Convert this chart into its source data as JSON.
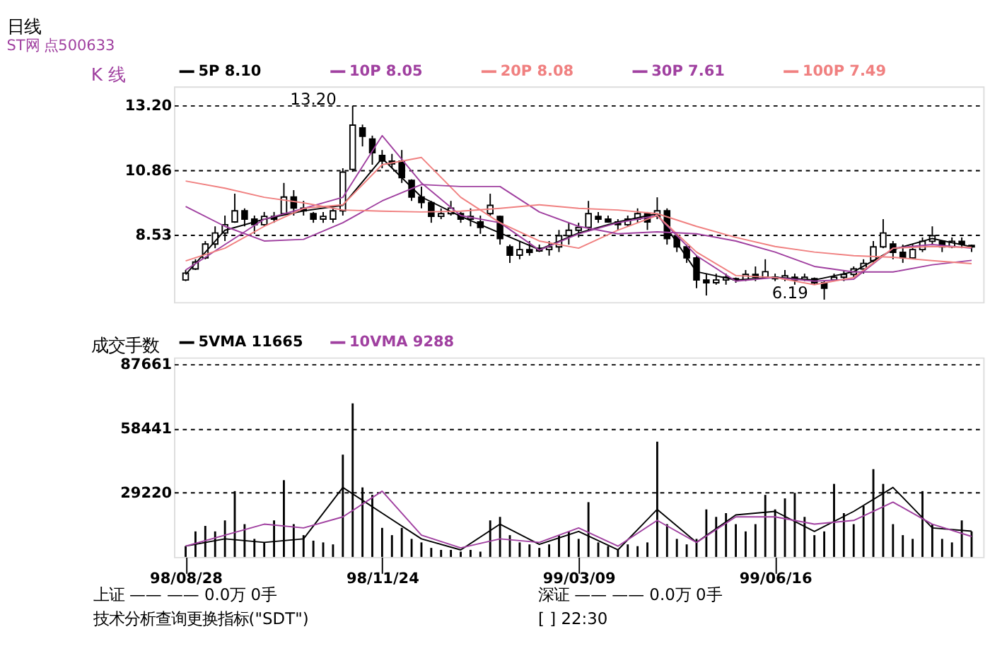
{
  "chart_data": [
    {
      "type": "candlestick",
      "title": "日线",
      "subtitle": "ST网    点500633",
      "ylabel": "K 线",
      "legend": "top",
      "grid": "y",
      "tick_labels": "y",
      "categories": [
        null,
        null,
        null,
        null,
        null,
        null,
        null,
        null,
        null,
        null,
        null,
        null,
        null,
        null,
        null,
        null,
        null,
        null,
        null,
        null,
        null,
        null,
        null,
        null,
        null,
        null,
        null,
        null,
        null,
        null,
        null,
        null,
        null,
        null,
        null,
        null,
        null,
        null,
        null,
        null,
        null,
        null,
        null,
        null,
        null,
        null,
        null,
        null,
        null,
        null,
        null,
        null,
        null,
        null,
        null,
        null,
        null,
        null,
        null,
        null,
        null,
        null,
        null,
        null,
        null,
        null,
        null,
        null,
        null,
        null,
        null,
        null,
        null,
        null,
        null,
        null,
        null,
        null,
        null,
        null,
        null
      ],
      "ohlc": [
        [
          6.9,
          7.26,
          6.86,
          7.15
        ],
        [
          7.3,
          7.65,
          7.26,
          7.55
        ],
        [
          7.7,
          8.31,
          7.65,
          8.2
        ],
        [
          8.2,
          8.84,
          8.05,
          8.6
        ],
        [
          8.6,
          9.23,
          8.31,
          8.9
        ],
        [
          9.0,
          10.02,
          8.97,
          9.4
        ],
        [
          9.4,
          9.49,
          8.84,
          9.1
        ],
        [
          9.1,
          9.23,
          8.57,
          8.9
        ],
        [
          8.9,
          9.36,
          8.84,
          9.2
        ],
        [
          9.2,
          9.36,
          8.97,
          9.1
        ],
        [
          9.3,
          10.41,
          9.23,
          9.9
        ],
        [
          9.9,
          10.15,
          9.23,
          9.5
        ],
        [
          9.5,
          9.76,
          9.23,
          9.4
        ],
        [
          9.3,
          9.36,
          8.97,
          9.1
        ],
        [
          9.1,
          9.36,
          8.97,
          9.2
        ],
        [
          9.1,
          9.49,
          8.97,
          9.4
        ],
        [
          9.4,
          10.94,
          9.23,
          10.8
        ],
        [
          10.9,
          13.2,
          10.81,
          12.5
        ],
        [
          12.4,
          12.52,
          11.73,
          12.1
        ],
        [
          12.0,
          12.12,
          11.07,
          11.5
        ],
        [
          11.4,
          11.6,
          10.94,
          11.2
        ],
        [
          11.2,
          11.46,
          10.94,
          11.1
        ],
        [
          11.2,
          11.6,
          10.41,
          10.6
        ],
        [
          10.5,
          10.54,
          9.76,
          9.9
        ],
        [
          9.9,
          10.28,
          9.49,
          9.7
        ],
        [
          9.7,
          9.76,
          8.97,
          9.2
        ],
        [
          9.2,
          9.49,
          9.1,
          9.3
        ],
        [
          9.3,
          9.76,
          9.23,
          9.5
        ],
        [
          9.3,
          9.36,
          8.97,
          9.1
        ],
        [
          9.1,
          9.49,
          8.84,
          9.2
        ],
        [
          9.0,
          9.23,
          8.57,
          8.8
        ],
        [
          9.3,
          10.02,
          9.23,
          9.6
        ],
        [
          9.2,
          9.23,
          8.18,
          8.4
        ],
        [
          8.1,
          8.18,
          7.52,
          7.8
        ],
        [
          7.8,
          8.31,
          7.65,
          8.0
        ],
        [
          8.0,
          8.31,
          7.78,
          7.9
        ],
        [
          7.95,
          8.18,
          7.91,
          8.05
        ],
        [
          8.0,
          8.31,
          7.78,
          8.1
        ],
        [
          8.1,
          8.71,
          7.91,
          8.5
        ],
        [
          8.5,
          8.97,
          8.18,
          8.7
        ],
        [
          8.7,
          8.97,
          8.44,
          8.8
        ],
        [
          8.8,
          9.76,
          8.71,
          9.3
        ],
        [
          9.2,
          9.36,
          8.97,
          9.1
        ],
        [
          9.1,
          9.23,
          8.97,
          9.0
        ],
        [
          9.0,
          9.1,
          8.71,
          8.9
        ],
        [
          8.9,
          9.23,
          8.84,
          9.1
        ],
        [
          9.1,
          9.49,
          8.97,
          9.3
        ],
        [
          9.3,
          9.36,
          8.71,
          9.0
        ],
        [
          9.2,
          9.89,
          9.1,
          9.4
        ],
        [
          9.4,
          9.49,
          8.18,
          8.4
        ],
        [
          8.5,
          8.57,
          7.91,
          8.1
        ],
        [
          8.1,
          8.18,
          7.52,
          7.7
        ],
        [
          7.7,
          7.78,
          6.6,
          6.9
        ],
        [
          6.9,
          7.13,
          6.34,
          6.8
        ],
        [
          6.8,
          7.13,
          6.73,
          6.9
        ],
        [
          6.9,
          7.13,
          6.73,
          7.0
        ],
        [
          6.95,
          6.99,
          6.8,
          6.9
        ],
        [
          6.9,
          7.26,
          6.86,
          7.1
        ],
        [
          7.1,
          7.39,
          6.86,
          7.0
        ],
        [
          7.0,
          7.65,
          6.99,
          7.2
        ],
        [
          7.0,
          7.13,
          6.86,
          6.95
        ],
        [
          6.95,
          7.26,
          6.86,
          7.05
        ],
        [
          7.0,
          7.13,
          6.73,
          6.9
        ],
        [
          6.9,
          7.13,
          6.86,
          7.0
        ],
        [
          6.95,
          6.99,
          6.73,
          6.8
        ],
        [
          6.8,
          6.86,
          6.19,
          6.6
        ],
        [
          6.9,
          7.13,
          6.86,
          7.0
        ],
        [
          7.0,
          7.26,
          6.86,
          7.1
        ],
        [
          7.1,
          7.39,
          6.99,
          7.3
        ],
        [
          7.3,
          7.65,
          7.13,
          7.5
        ],
        [
          7.6,
          8.31,
          7.52,
          8.1
        ],
        [
          8.1,
          9.1,
          8.05,
          8.6
        ],
        [
          8.2,
          8.31,
          7.65,
          7.9
        ],
        [
          7.9,
          8.18,
          7.52,
          7.7
        ],
        [
          7.7,
          8.18,
          7.65,
          8.0
        ],
        [
          8.0,
          8.44,
          7.91,
          8.3
        ],
        [
          8.3,
          8.84,
          8.18,
          8.5
        ],
        [
          8.3,
          8.31,
          7.91,
          8.1
        ],
        [
          8.1,
          8.44,
          8.05,
          8.3
        ],
        [
          8.3,
          8.44,
          8.05,
          8.2
        ],
        [
          8.15,
          8.18,
          7.91,
          8.1
        ]
      ],
      "series": [
        {
          "type": "line",
          "name": "5P 8.10",
          "color": "#000000",
          "values": [
            7.1,
            null,
            null,
            null,
            8.7,
            null,
            null,
            null,
            9.1,
            null,
            null,
            null,
            9.4,
            null,
            null,
            null,
            9.6,
            null,
            null,
            null,
            11.3,
            null,
            null,
            null,
            9.9,
            null,
            null,
            null,
            9.2,
            null,
            null,
            null,
            8.6,
            null,
            null,
            null,
            8.0,
            null,
            null,
            null,
            8.6,
            null,
            null,
            null,
            9.0,
            null,
            null,
            null,
            9.3,
            null,
            null,
            null,
            7.2,
            null,
            null,
            null,
            6.9,
            null,
            null,
            null,
            7.0,
            null,
            null,
            null,
            6.9,
            null,
            null,
            null,
            7.2,
            null,
            null,
            null,
            8.0,
            null,
            null,
            null,
            8.4,
            null,
            null,
            null,
            8.1
          ]
        },
        {
          "type": "line",
          "name": "10P 8.05",
          "color": "#a040a0",
          "values": [
            7.26,
            null,
            null,
            null,
            8.18,
            null,
            null,
            null,
            9.1,
            null,
            null,
            null,
            9.49,
            null,
            null,
            null,
            9.89,
            null,
            null,
            null,
            12.12,
            null,
            null,
            null,
            10.41,
            null,
            null,
            null,
            9.23,
            null,
            null,
            null,
            8.97,
            null,
            null,
            null,
            7.98,
            null,
            null,
            null,
            8.57,
            null,
            null,
            null,
            8.97,
            null,
            null,
            null,
            9.23,
            null,
            null,
            null,
            7.78,
            null,
            null,
            null,
            6.86,
            null,
            null,
            null,
            6.99,
            null,
            null,
            null,
            6.86,
            null,
            null,
            null,
            6.93,
            null,
            null,
            null,
            8.05,
            null,
            null,
            null,
            8.18,
            null,
            null,
            null,
            8.05
          ]
        },
        {
          "type": "line",
          "name": "20P 8.08",
          "color": "#f08080",
          "values": [
            7.59,
            null,
            null,
            null,
            8.05,
            null,
            null,
            null,
            8.84,
            null,
            null,
            null,
            9.49,
            null,
            null,
            null,
            9.62,
            null,
            null,
            null,
            11.07,
            null,
            null,
            null,
            11.33,
            null,
            null,
            null,
            9.89,
            null,
            null,
            null,
            8.97,
            null,
            null,
            null,
            8.31,
            null,
            null,
            null,
            8.05,
            null,
            null,
            null,
            8.7,
            null,
            null,
            null,
            9.23,
            null,
            null,
            null,
            7.91,
            null,
            null,
            null,
            7.06,
            null,
            null,
            null,
            6.99,
            null,
            null,
            null,
            6.73,
            null,
            null,
            null,
            6.99,
            null,
            null,
            null,
            8.05,
            null,
            null,
            null,
            8.11,
            null,
            null,
            null,
            8.08
          ]
        },
        {
          "type": "line",
          "name": "30P 7.61",
          "color": "#a040a0",
          "values": [
            9.56,
            null,
            null,
            null,
            8.84,
            null,
            null,
            null,
            8.31,
            null,
            null,
            null,
            8.37,
            null,
            null,
            null,
            8.97,
            null,
            null,
            null,
            9.76,
            null,
            null,
            null,
            10.35,
            null,
            null,
            null,
            10.28,
            null,
            null,
            null,
            10.28,
            null,
            null,
            null,
            9.36,
            null,
            null,
            null,
            8.84,
            null,
            null,
            null,
            8.57,
            null,
            null,
            null,
            8.64,
            null,
            null,
            null,
            8.57,
            null,
            null,
            null,
            8.31,
            null,
            null,
            null,
            7.91,
            null,
            null,
            null,
            7.39,
            null,
            null,
            null,
            7.19,
            null,
            null,
            null,
            7.19,
            null,
            null,
            null,
            7.45,
            null,
            null,
            null,
            7.61
          ]
        },
        {
          "type": "line",
          "name": "100P 7.49",
          "color": "#f08080",
          "values": [
            10.48,
            null,
            null,
            null,
            10.22,
            null,
            null,
            null,
            9.89,
            null,
            null,
            null,
            9.69,
            null,
            null,
            null,
            9.43,
            null,
            null,
            null,
            9.39,
            null,
            null,
            null,
            9.36,
            null,
            null,
            null,
            9.39,
            null,
            null,
            null,
            9.49,
            null,
            null,
            null,
            9.62,
            null,
            null,
            null,
            9.49,
            null,
            null,
            null,
            9.43,
            null,
            null,
            null,
            9.3,
            null,
            null,
            null,
            8.84,
            null,
            null,
            null,
            8.44,
            null,
            null,
            null,
            8.11,
            null,
            null,
            null,
            7.91,
            null,
            null,
            null,
            7.78,
            null,
            null,
            null,
            7.72,
            null,
            null,
            null,
            7.6,
            null,
            null,
            null,
            7.49
          ]
        }
      ],
      "ylim": [
        6.1,
        13.9
      ],
      "yticks": [
        {
          "value": 13.2,
          "label": "13.20"
        },
        {
          "value": 10.86,
          "label": "10.86"
        },
        {
          "value": 8.53,
          "label": "8.53"
        }
      ],
      "annotations": [
        "13.20",
        "6.19"
      ]
    },
    {
      "type": "bar",
      "ylabel": "成交手数",
      "legend": "top",
      "grid": "y",
      "categories": [
        "98/08/28",
        null,
        null,
        null,
        null,
        null,
        null,
        null,
        null,
        null,
        null,
        null,
        null,
        null,
        null,
        null,
        null,
        null,
        null,
        null,
        "98/11/24",
        null,
        null,
        null,
        null,
        null,
        null,
        null,
        null,
        null,
        null,
        null,
        null,
        null,
        null,
        null,
        null,
        null,
        null,
        null,
        "99/03/09",
        null,
        null,
        null,
        null,
        null,
        null,
        null,
        null,
        null,
        null,
        null,
        null,
        null,
        null,
        null,
        null,
        null,
        null,
        null,
        "99/06/16",
        null,
        null,
        null,
        null,
        null,
        null,
        null,
        null,
        null,
        null,
        null,
        null,
        null,
        null,
        null,
        null,
        null,
        null,
        null,
        null
      ],
      "series": [
        {
          "type": "bar",
          "color": "#000000",
          "values": [
            4900,
            11600,
            14100,
            11600,
            16600,
            29900,
            14900,
            8200,
            6600,
            16600,
            34900,
            14900,
            9900,
            7400,
            6600,
            5700,
            46500,
            69800,
            31600,
            28200,
            13200,
            9900,
            13200,
            8200,
            6600,
            4100,
            3200,
            3200,
            2400,
            3200,
            2400,
            16600,
            18200,
            9900,
            6600,
            5700,
            4100,
            5700,
            9900,
            11600,
            8200,
            24900,
            6600,
            4900,
            3200,
            5700,
            4900,
            6600,
            52400,
            14900,
            8200,
            5700,
            8200,
            21600,
            18200,
            19900,
            14900,
            11600,
            14900,
            28200,
            21600,
            26600,
            29100,
            18200,
            9900,
            11600,
            33200,
            19900,
            14900,
            23200,
            39900,
            33200,
            14900,
            9900,
            8200,
            29900,
            14900,
            8200,
            6600,
            16600,
            11600
          ]
        },
        {
          "type": "line",
          "name": "5VMA 11665",
          "color": "#000000",
          "values": [
            4900,
            null,
            null,
            null,
            8200,
            null,
            null,
            null,
            6600,
            null,
            null,
            null,
            8200,
            null,
            null,
            null,
            31600,
            null,
            null,
            null,
            19900,
            null,
            null,
            null,
            8200,
            null,
            null,
            null,
            3200,
            null,
            null,
            null,
            14900,
            null,
            null,
            null,
            5700,
            null,
            null,
            null,
            11600,
            null,
            null,
            null,
            3200,
            null,
            null,
            null,
            21600,
            null,
            null,
            null,
            6600,
            null,
            null,
            null,
            19100,
            null,
            null,
            null,
            20700,
            null,
            null,
            null,
            11600,
            null,
            null,
            null,
            20700,
            null,
            null,
            null,
            31600,
            null,
            null,
            null,
            13200,
            null,
            null,
            null,
            11700
          ]
        },
        {
          "type": "line",
          "name": "10VMA 9288",
          "color": "#a040a0",
          "values": [
            4900,
            null,
            null,
            null,
            9900,
            null,
            null,
            null,
            14900,
            null,
            null,
            null,
            13200,
            null,
            null,
            null,
            18200,
            null,
            null,
            null,
            29900,
            null,
            null,
            null,
            9900,
            null,
            null,
            null,
            4100,
            null,
            null,
            null,
            8200,
            null,
            null,
            null,
            6600,
            null,
            null,
            null,
            13200,
            null,
            null,
            null,
            4900,
            null,
            null,
            null,
            16600,
            null,
            null,
            null,
            6600,
            null,
            null,
            null,
            18200,
            null,
            null,
            null,
            18200,
            null,
            null,
            null,
            14900,
            null,
            null,
            null,
            16600,
            null,
            null,
            null,
            24900,
            null,
            null,
            null,
            14900,
            null,
            null,
            null,
            9300
          ]
        }
      ],
      "ylim": [
        0,
        90700
      ],
      "yticks": [
        29220,
        58441,
        87661
      ],
      "annotations": [
        "上证    ——    ——    0.0万    0手",
        "深证    ——    ——    0.0万    0手",
        "技术分析查询更换指标(\"SDT\")",
        "[          ]  22:30"
      ]
    }
  ]
}
